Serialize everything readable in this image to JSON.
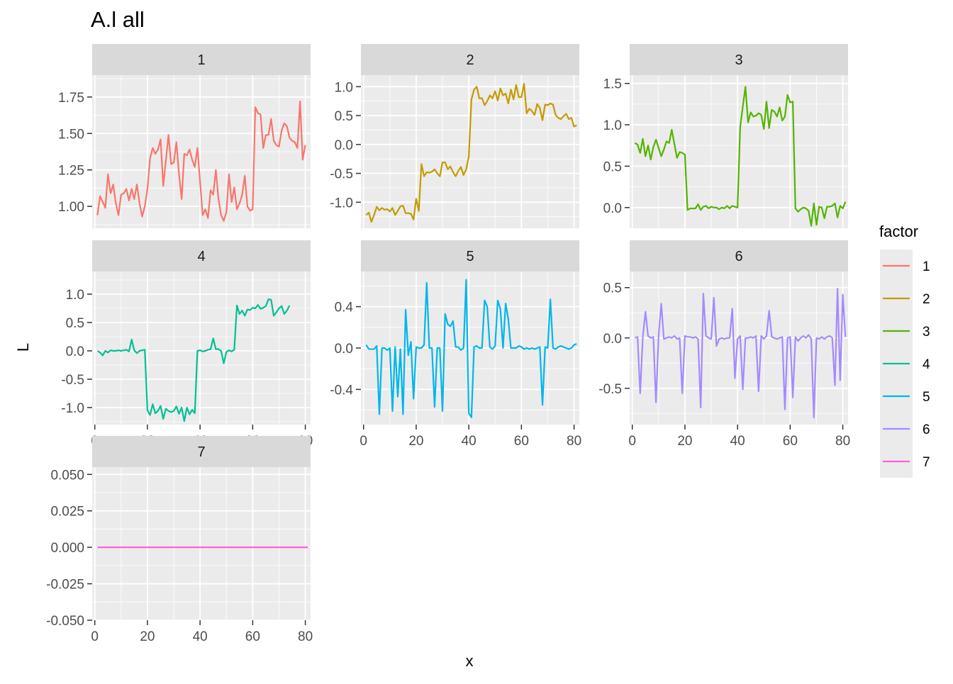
{
  "chart_data": {
    "type": "line",
    "title": "A.l all",
    "xlabel": "x",
    "ylabel": "L",
    "grid": true,
    "legend_position": "right",
    "legend": {
      "title": "factor",
      "entries": [
        {
          "label": "1",
          "color": "#F8766D"
        },
        {
          "label": "2",
          "color": "#C49A00"
        },
        {
          "label": "3",
          "color": "#53B400"
        },
        {
          "label": "4",
          "color": "#00C094"
        },
        {
          "label": "5",
          "color": "#00B6EB"
        },
        {
          "label": "6",
          "color": "#A58AFF"
        },
        {
          "label": "7",
          "color": "#FB61D7"
        }
      ]
    },
    "x_ticks": [
      "0",
      "20",
      "40",
      "60",
      "80"
    ],
    "xlim": [
      -1,
      82
    ],
    "panels": [
      {
        "strip": "1",
        "color": "#F8766D",
        "ylim": [
          0.85,
          1.9
        ],
        "y_ticks": [
          1.0,
          1.25,
          1.5,
          1.75
        ],
        "y_tick_labels": [
          "1.00",
          "1.25",
          "1.50",
          "1.75"
        ],
        "y": [
          0.94,
          1.07,
          1.03,
          0.99,
          1.22,
          1.09,
          1.15,
          1.02,
          0.94,
          1.08,
          1.09,
          1.12,
          1.04,
          1.12,
          1.05,
          1.15,
          1.02,
          0.93,
          1.0,
          1.12,
          1.33,
          1.4,
          1.36,
          1.39,
          1.46,
          1.14,
          1.31,
          1.49,
          1.29,
          1.3,
          1.44,
          1.22,
          1.05,
          1.36,
          1.35,
          1.39,
          1.32,
          1.27,
          1.4,
          1.17,
          0.94,
          0.98,
          0.92,
          1.11,
          1.08,
          1.25,
          1.05,
          0.94,
          0.9,
          0.96,
          1.22,
          1.03,
          1.13,
          0.98,
          1.02,
          1.08,
          1.21,
          1.0,
          0.97,
          0.98,
          1.68,
          1.64,
          1.63,
          1.4,
          1.49,
          1.49,
          1.6,
          1.45,
          1.42,
          1.41,
          1.52,
          1.57,
          1.55,
          1.47,
          1.45,
          1.44,
          1.4,
          1.72,
          1.32,
          1.42
        ]
      },
      {
        "strip": "2",
        "color": "#C49A00",
        "ylim": [
          -1.45,
          1.2
        ],
        "y_ticks": [
          -1.0,
          -0.5,
          0.0,
          0.5,
          1.0
        ],
        "y_tick_labels": [
          "-1.0",
          "-0.5",
          "0.0",
          "0.5",
          "1.0"
        ],
        "y": [
          -1.22,
          -1.18,
          -1.34,
          -1.22,
          -1.08,
          -1.14,
          -1.1,
          -1.13,
          -1.12,
          -1.16,
          -1.1,
          -1.22,
          -1.15,
          -1.07,
          -1.06,
          -1.19,
          -1.19,
          -1.2,
          -1.3,
          -0.94,
          -1.15,
          -0.34,
          -0.55,
          -0.48,
          -0.49,
          -0.47,
          -0.43,
          -0.5,
          -0.55,
          -0.31,
          -0.31,
          -0.43,
          -0.38,
          -0.48,
          -0.55,
          -0.46,
          -0.39,
          -0.53,
          -0.43,
          -0.21,
          0.78,
          0.95,
          1.0,
          0.8,
          0.8,
          0.68,
          0.75,
          0.85,
          0.8,
          0.92,
          0.76,
          0.97,
          0.85,
          0.88,
          0.71,
          0.95,
          0.78,
          1.03,
          0.82,
          0.82,
          1.05,
          0.54,
          0.62,
          0.58,
          0.51,
          0.7,
          0.63,
          0.42,
          0.69,
          0.68,
          0.71,
          0.69,
          0.51,
          0.46,
          0.44,
          0.49,
          0.53,
          0.44,
          0.46,
          0.31,
          0.33
        ]
      },
      {
        "strip": "3",
        "color": "#53B400",
        "ylim": [
          -0.25,
          1.6
        ],
        "y_ticks": [
          0.0,
          0.5,
          1.0,
          1.5
        ],
        "y_tick_labels": [
          "0.0",
          "0.5",
          "1.0",
          "1.5"
        ],
        "y": [
          0.78,
          0.76,
          0.66,
          0.83,
          0.62,
          0.75,
          0.58,
          0.73,
          0.82,
          0.72,
          0.62,
          0.7,
          0.8,
          0.78,
          0.94,
          0.77,
          0.6,
          0.67,
          0.66,
          0.64,
          -0.03,
          -0.01,
          -0.01,
          -0.01,
          0.04,
          -0.03,
          0.01,
          0.02,
          -0.01,
          0.01,
          0.0,
          0.0,
          -0.02,
          0.0,
          -0.01,
          0.02,
          -0.01,
          0.02,
          0.01,
          0.0,
          0.97,
          1.22,
          1.46,
          1.03,
          1.15,
          1.1,
          1.11,
          1.14,
          1.12,
          0.95,
          1.28,
          0.96,
          1.18,
          1.16,
          1.1,
          1.21,
          1.05,
          1.1,
          1.36,
          1.27,
          1.28,
          -0.01,
          -0.05,
          -0.02,
          0.0,
          -0.01,
          -0.04,
          -0.22,
          0.05,
          -0.21,
          0.01,
          0.0,
          -0.13,
          0.01,
          0.01,
          0.02,
          0.05,
          -0.12,
          0.02,
          -0.01,
          0.07
        ]
      },
      {
        "strip": "4",
        "color": "#00C094",
        "ylim": [
          -1.3,
          1.4
        ],
        "y_ticks": [
          -1.0,
          -0.5,
          0.0,
          0.5,
          1.0
        ],
        "y_tick_labels": [
          "-1.0",
          "-0.5",
          "0.0",
          "0.5",
          "1.0"
        ],
        "y": [
          0.0,
          -0.03,
          -0.08,
          0.0,
          -0.03,
          0.01,
          0.0,
          0.0,
          0.01,
          0.0,
          0.01,
          0.02,
          -0.01,
          0.2,
          0.01,
          -0.04,
          0.0,
          0.01,
          0.02,
          -1.05,
          -1.13,
          -0.94,
          -1.1,
          -1.06,
          -0.97,
          -1.2,
          -1.02,
          -1.06,
          -1.08,
          -1.06,
          -0.98,
          -1.11,
          -1.0,
          -1.24,
          -1.0,
          -1.12,
          -1.04,
          -1.1,
          0.0,
          0.01,
          -0.01,
          0.0,
          0.02,
          0.03,
          0.22,
          0.03,
          0.03,
          0.0,
          -0.22,
          -0.02,
          0.01,
          -0.01,
          0.02,
          0.8,
          0.65,
          0.71,
          0.62,
          0.73,
          0.72,
          0.76,
          0.75,
          0.81,
          0.74,
          0.76,
          0.79,
          0.91,
          0.9,
          0.62,
          0.68,
          0.75,
          0.79,
          0.65,
          0.71,
          0.8
        ]
      },
      {
        "strip": "5",
        "color": "#00B6EB",
        "ylim": [
          -0.74,
          0.74
        ],
        "y_ticks": [
          -0.4,
          0.0,
          0.4
        ],
        "y_tick_labels": [
          "-0.4",
          "0.0",
          "0.4"
        ],
        "y": [
          0.03,
          -0.01,
          -0.01,
          -0.01,
          0.02,
          -0.64,
          0.0,
          0.0,
          -0.02,
          0.0,
          -0.61,
          0.01,
          -0.47,
          -0.01,
          -0.64,
          0.37,
          -0.07,
          0.06,
          -0.49,
          0.01,
          0.0,
          0.0,
          0.03,
          0.63,
          0.0,
          0.0,
          -0.57,
          0.0,
          0.0,
          -0.61,
          0.33,
          0.23,
          0.21,
          0.26,
          0.01,
          0.01,
          -0.02,
          0.0,
          0.66,
          -0.63,
          -0.67,
          0.01,
          0.02,
          0.0,
          0.0,
          0.46,
          0.4,
          0.01,
          -0.01,
          0.02,
          0.46,
          0.38,
          0.0,
          0.43,
          0.28,
          0.0,
          0.0,
          0.0,
          0.02,
          0.01,
          -0.01,
          0.0,
          -0.01,
          0.0,
          -0.01,
          0.0,
          0.01,
          -0.55,
          0.01,
          0.0,
          0.47,
          0.0,
          -0.01,
          0.01,
          0.02,
          0.01,
          0.0,
          -0.01,
          0.0,
          0.03,
          0.04
        ]
      },
      {
        "strip": "6",
        "color": "#A58AFF",
        "ylim": [
          -0.86,
          0.66
        ],
        "y_ticks": [
          -0.5,
          0.0,
          0.5
        ],
        "y_tick_labels": [
          "-0.5",
          "0.0",
          "0.5"
        ],
        "y": [
          0.0,
          0.01,
          -0.55,
          0.01,
          0.26,
          0.02,
          0.0,
          0.01,
          -0.64,
          0.02,
          0.34,
          -0.01,
          0.0,
          0.01,
          0.0,
          0.02,
          -0.01,
          0.0,
          -0.55,
          0.02,
          0.01,
          0.01,
          0.0,
          0.01,
          -0.01,
          -0.69,
          0.44,
          0.02,
          0.0,
          -0.01,
          0.4,
          -0.08,
          -0.01,
          0.0,
          -0.01,
          0.0,
          0.0,
          0.29,
          -0.4,
          -0.01,
          0.02,
          -0.51,
          0.0,
          0.0,
          0.01,
          0.0,
          0.02,
          -0.53,
          0.02,
          -0.01,
          0.02,
          0.27,
          0.01,
          0.0,
          -0.01,
          0.0,
          0.01,
          -0.71,
          0.0,
          0.01,
          -0.59,
          0.01,
          -0.03,
          0.0,
          0.02,
          0.0,
          0.03,
          -0.01,
          -0.79,
          0.0,
          -0.01,
          0.01,
          -0.01,
          0.01,
          0.02,
          0.0,
          -0.47,
          0.49,
          -0.42,
          0.43,
          0.01
        ]
      },
      {
        "strip": "7",
        "color": "#FB61D7",
        "ylim": [
          -0.05,
          0.055
        ],
        "y_ticks": [
          -0.05,
          -0.025,
          0.0,
          0.025,
          0.05
        ],
        "y_tick_labels": [
          "-0.050",
          "-0.025",
          "0.000",
          "0.025",
          "0.050"
        ],
        "y": [
          0,
          0,
          0,
          0,
          0,
          0,
          0,
          0,
          0,
          0,
          0,
          0,
          0,
          0,
          0,
          0,
          0,
          0,
          0,
          0,
          0,
          0,
          0,
          0,
          0,
          0,
          0,
          0,
          0,
          0,
          0,
          0,
          0,
          0,
          0,
          0,
          0,
          0,
          0,
          0,
          0,
          0,
          0,
          0,
          0,
          0,
          0,
          0,
          0,
          0,
          0,
          0,
          0,
          0,
          0,
          0,
          0,
          0,
          0,
          0,
          0,
          0,
          0,
          0,
          0,
          0,
          0,
          0,
          0,
          0,
          0,
          0,
          0,
          0,
          0,
          0,
          0,
          0,
          0,
          0,
          0
        ]
      }
    ]
  }
}
